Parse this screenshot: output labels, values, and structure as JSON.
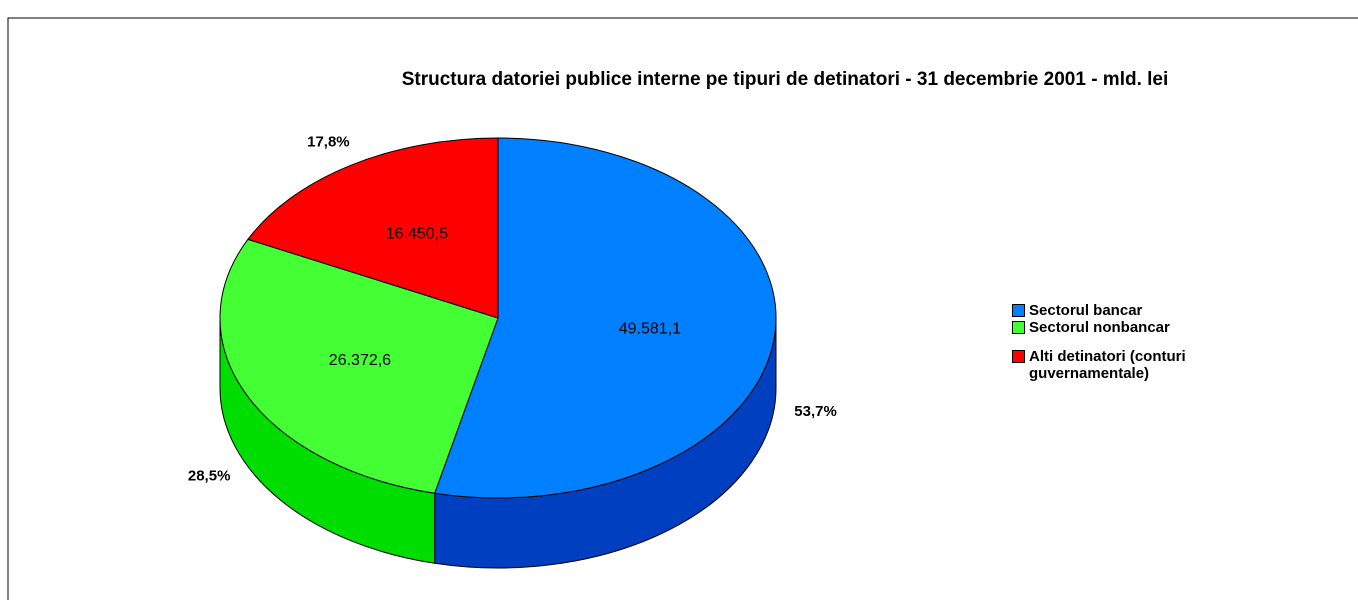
{
  "chart_data": {
    "type": "pie",
    "title": "Structura datoriei publice interne pe tipuri de detinatori - 31 decembrie 2001 - mld. lei",
    "categories": [
      "Sectorul bancar",
      "Sectorul nonbancar",
      "Alti detinatori (conturi guvernamentale)"
    ],
    "values": [
      49581.1,
      26372.6,
      16450.5
    ],
    "value_labels": [
      "49.581,1",
      "26.372,6",
      "16.450,5"
    ],
    "percents": [
      53.7,
      28.5,
      17.8
    ],
    "percent_labels": [
      "53,7%",
      "28,5%",
      "17,8%"
    ],
    "colors": [
      "#0080ff",
      "#44ff33",
      "#ff0000"
    ],
    "side_colors": [
      "#0040c0",
      "#00dd00",
      "#c00000"
    ]
  }
}
